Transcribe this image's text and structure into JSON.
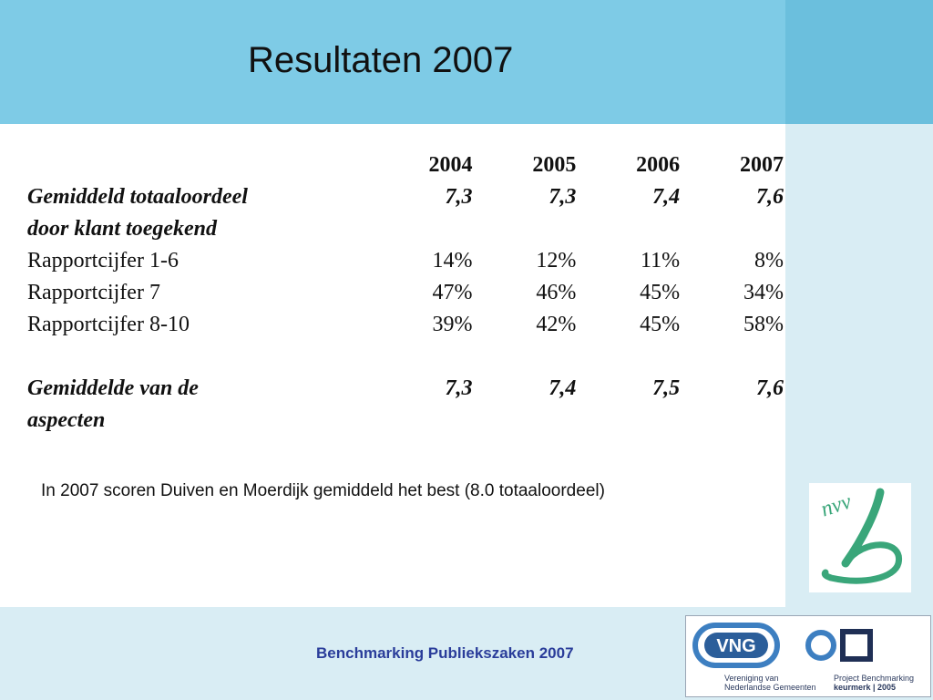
{
  "slide": {
    "title": "Resultaten 2007",
    "note": "In 2007 scoren Duiven en Moerdijk gemiddeld het best (8.0 totaaloordeel)",
    "footer": "Benchmarking Publiekszaken 2007"
  },
  "table": {
    "years": [
      "2004",
      "2005",
      "2006",
      "2007"
    ],
    "rows": [
      {
        "label": "Gemiddeld totaaloordeel",
        "label2": "door klant toegekend",
        "values": [
          "7,3",
          "7,3",
          "7,4",
          "7,6"
        ]
      },
      {
        "label": "Rapportcijfer 1-6",
        "values": [
          "14%",
          "12%",
          "11%",
          "8%"
        ]
      },
      {
        "label": "Rapportcijfer 7",
        "values": [
          "47%",
          "46%",
          "45%",
          "34%"
        ]
      },
      {
        "label": "Rapportcijfer 8-10",
        "values": [
          "39%",
          "42%",
          "45%",
          "58%"
        ]
      },
      {
        "label": "Gemiddelde van de",
        "label2": "aspecten",
        "values": [
          "7,3",
          "7,4",
          "7,5",
          "7,6"
        ]
      }
    ]
  },
  "logos": {
    "nvvb": {
      "text": "nvv"
    },
    "vng": {
      "text": "VNG",
      "caption_line1": "Vereniging van",
      "caption_line2": "Nederlandse Gemeenten"
    },
    "project": {
      "caption_line1": "Project Benchmarking",
      "caption_line2": "keurmerk | 2005"
    }
  },
  "colors": {
    "header_band": "#7ecbe6",
    "side_panel": "#d9edf4",
    "footer_text": "#2a3d9a",
    "logo_green": "#3aa67a",
    "logo_blue": "#3d7fc1"
  }
}
